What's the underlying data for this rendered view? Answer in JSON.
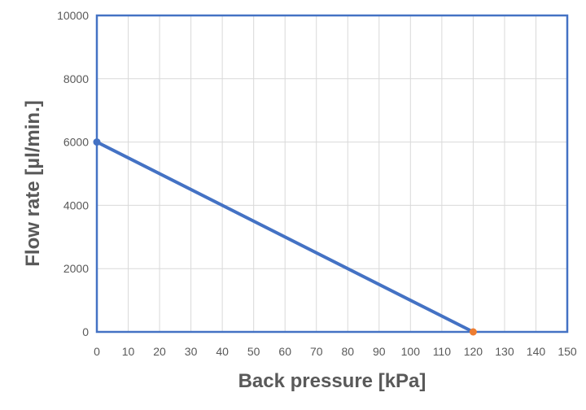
{
  "chart_data": {
    "type": "line",
    "title": "",
    "xlabel": "Back pressure [kPa]",
    "ylabel": "Flow rate [µl/min.]",
    "xlim": [
      0,
      150
    ],
    "ylim": [
      0,
      10000
    ],
    "xticks": [
      0,
      10,
      20,
      30,
      40,
      50,
      60,
      70,
      80,
      90,
      100,
      110,
      120,
      130,
      140,
      150
    ],
    "yticks": [
      0,
      2000,
      4000,
      6000,
      8000,
      10000
    ],
    "grid": true,
    "series": [
      {
        "name": "Flow rate",
        "x": [
          0,
          120
        ],
        "y": [
          6000,
          0
        ],
        "color": "#4472c4"
      }
    ],
    "points": [
      {
        "name": "max-flow-point",
        "x": 0,
        "y": 6000,
        "color": "#4472c4"
      },
      {
        "name": "max-pressure-point",
        "x": 120,
        "y": 0,
        "color": "#ed7d31"
      }
    ],
    "frame_color": "#4472c4"
  }
}
